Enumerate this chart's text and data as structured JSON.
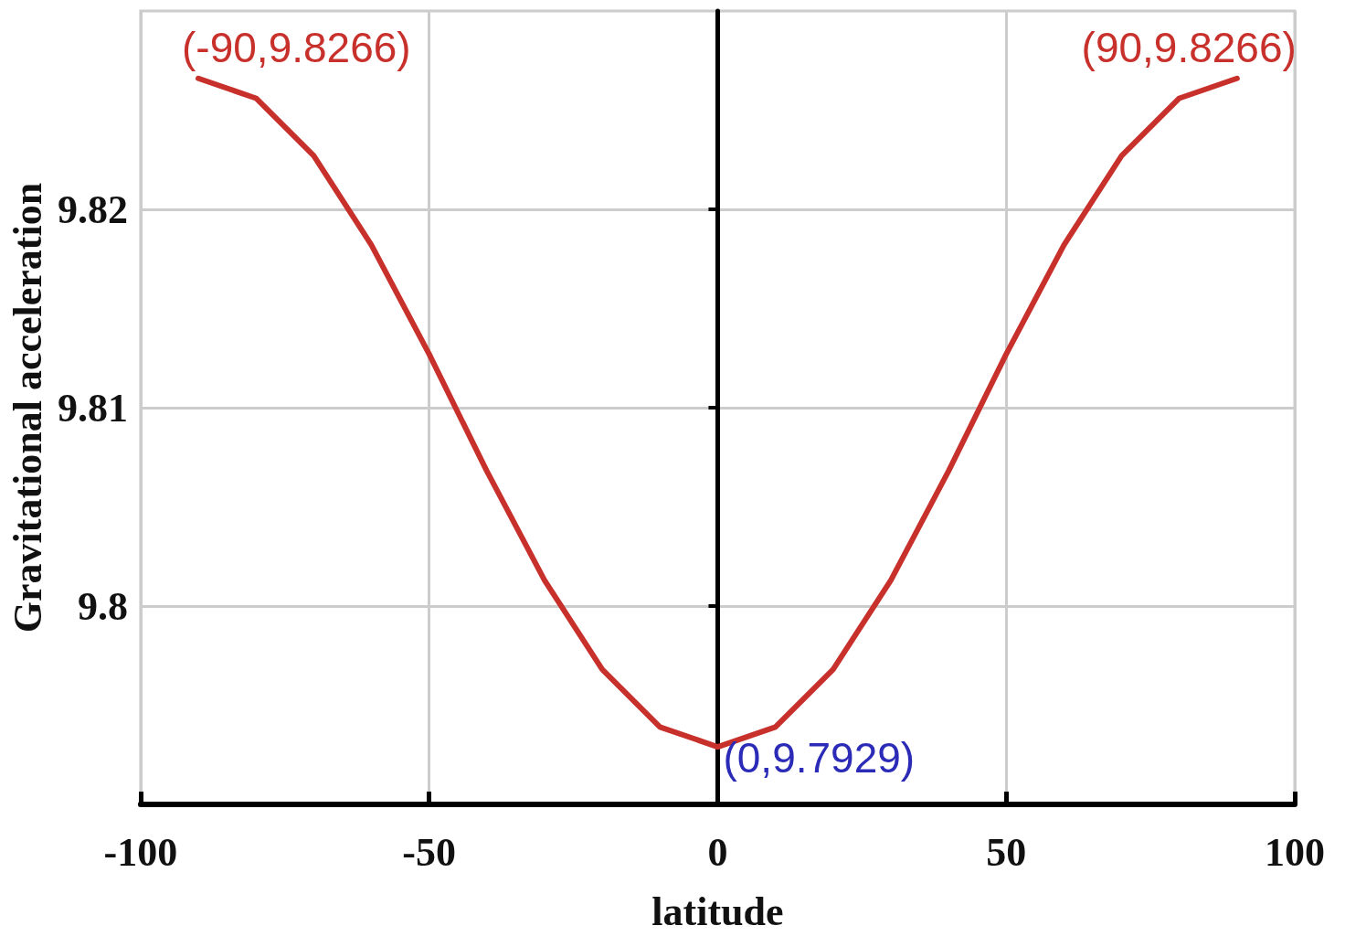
{
  "chart_data": {
    "type": "line",
    "xlabel": "latitude",
    "ylabel": "Gravitational acceleration",
    "x": [
      -90,
      -80,
      -70,
      -60,
      -50,
      -40,
      -30,
      -20,
      -10,
      0,
      10,
      20,
      30,
      40,
      50,
      60,
      70,
      80,
      90
    ],
    "series": [
      {
        "color": "#c8302c",
        "values": [
          9.8266,
          9.8256,
          9.8227,
          9.8182,
          9.8127,
          9.8068,
          9.8013,
          9.7968,
          9.7939,
          9.7929,
          9.7939,
          9.7968,
          9.8013,
          9.8068,
          9.8127,
          9.8182,
          9.8227,
          9.8256,
          9.8266
        ]
      }
    ],
    "xlim": [
      -100,
      100
    ],
    "xticks": [
      -100,
      -50,
      0,
      50,
      100
    ],
    "ylim": [
      9.79,
      9.83
    ],
    "yticks": [
      9.8,
      9.81,
      9.82
    ],
    "grid": true,
    "marker": "none",
    "line_style": "solid",
    "annotations": [
      {
        "text": "(-90,9.8266)",
        "x": -90,
        "y": 9.8266
      },
      {
        "text": "(90,9.8266)",
        "x": 90,
        "y": 9.8266
      },
      {
        "text": "(0,9.7929)",
        "x": 0,
        "y": 9.7929
      }
    ]
  }
}
